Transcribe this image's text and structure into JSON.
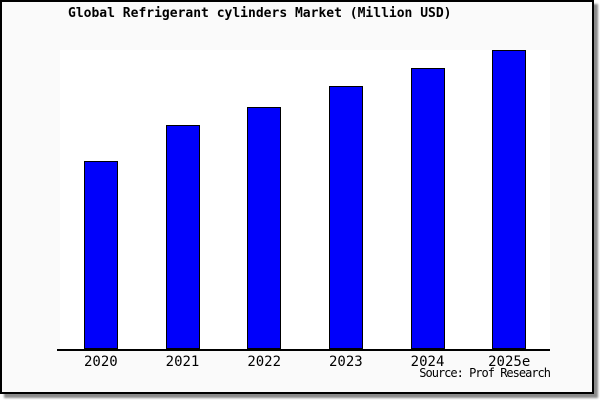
{
  "chart": {
    "title": "Global Refrigerant cylinders Market (Million USD)",
    "source_credit": "Source: Prof Research",
    "colors": {
      "bar_fill": "#0000fb",
      "bar_border": "#000000",
      "frame_background": "#fafafa",
      "plot_background": "#ffffff",
      "axis_line": "#000000",
      "frame_border": "#000000",
      "drop_shadow": "#8a8a8a"
    }
  },
  "chart_data": {
    "type": "bar",
    "title": "Global Refrigerant cylinders Market (Million USD)",
    "categories": [
      "2020",
      "2021",
      "2022",
      "2023",
      "2024",
      "2025e"
    ],
    "values": [
      63,
      75,
      81,
      88,
      94,
      100
    ],
    "value_note": "No y-axis scale or value labels are shown in the image; values are relative estimates of bar heights with 2025e = 100",
    "xlabel": "",
    "ylabel": "",
    "ylim": [
      0,
      100
    ],
    "grid": false,
    "legend": false,
    "annotations": [
      "Source: Prof Research"
    ]
  }
}
